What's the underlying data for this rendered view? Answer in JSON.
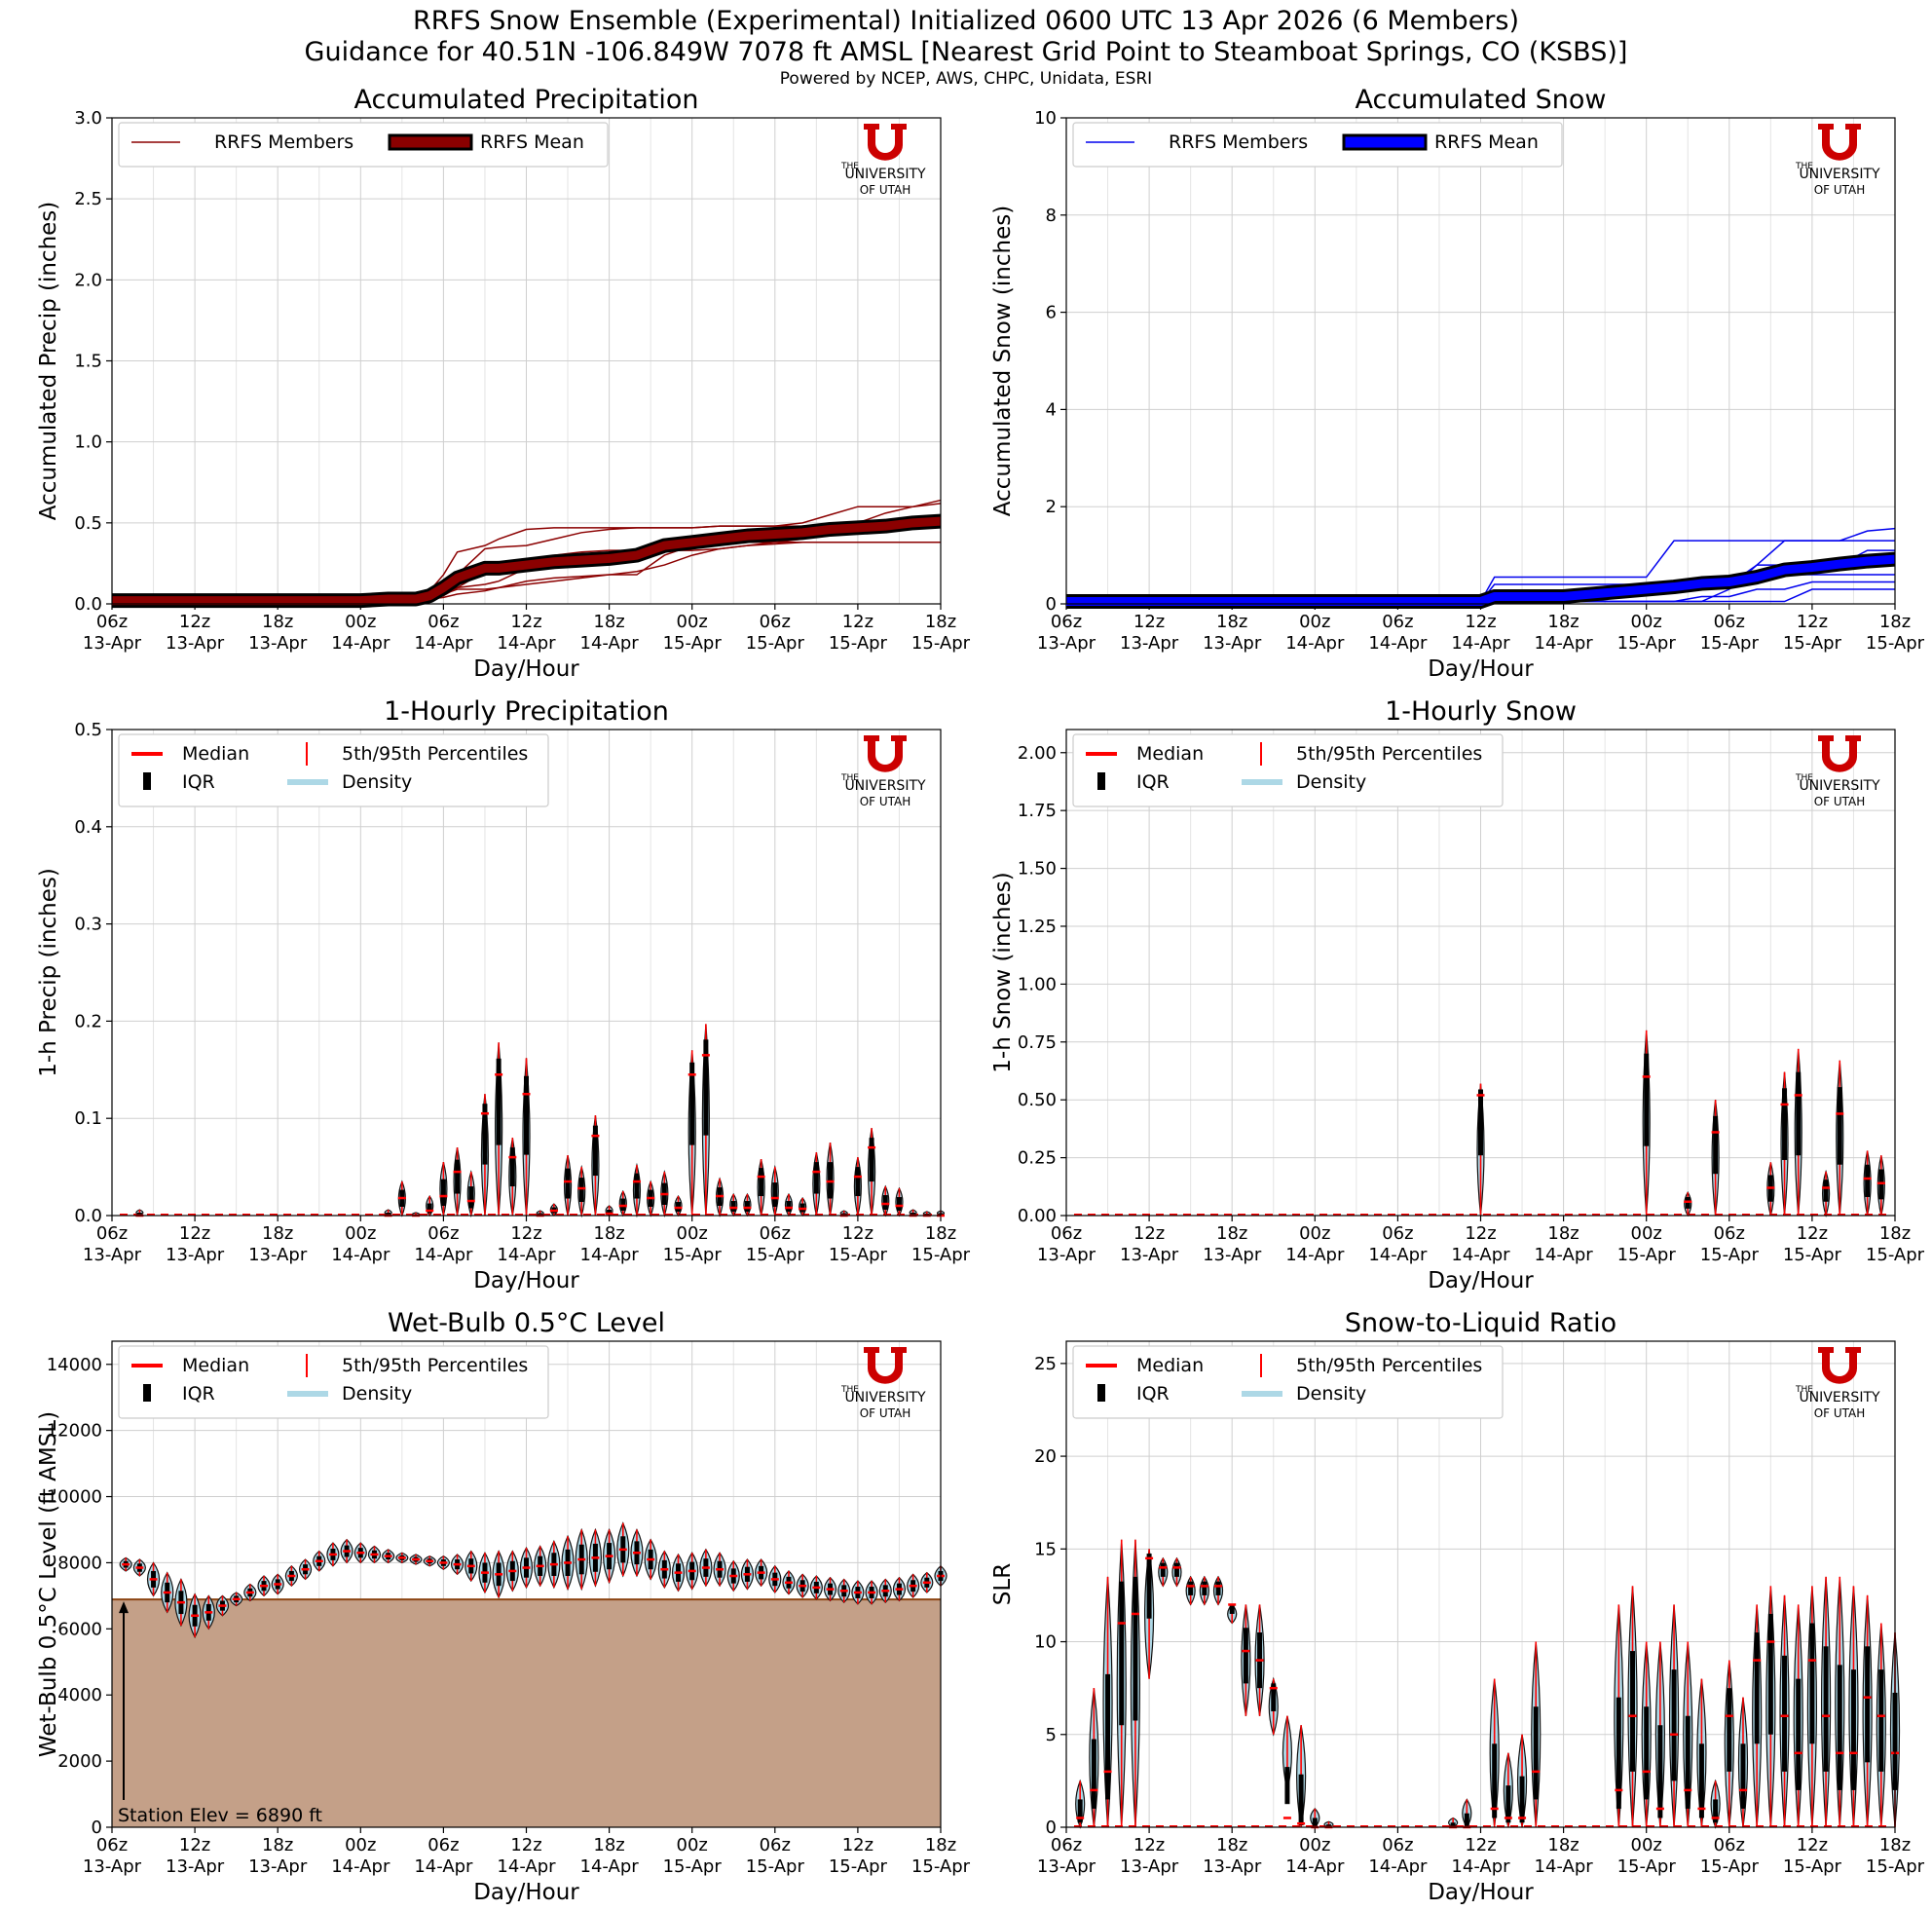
{
  "header": {
    "title_line1": "RRFS Snow Ensemble (Experimental) Initialized 0600 UTC 13 Apr 2026 (6 Members)",
    "title_line2": "Guidance for 40.51N -106.849W 7078 ft AMSL [Nearest Grid Point to Steamboat Springs, CO (KSBS)]",
    "credits": "Powered by NCEP, AWS, CHPC, Unidata, ESRI"
  },
  "logo": {
    "the": "THE",
    "university": "UNIVERSITY",
    "of_utah": "OF UTAH",
    "u_color": "#cc0000"
  },
  "x_axis": {
    "label": "Day/Hour",
    "ticks": [
      {
        "hour": "06z",
        "day": "13-Apr"
      },
      {
        "hour": "12z",
        "day": "13-Apr"
      },
      {
        "hour": "18z",
        "day": "13-Apr"
      },
      {
        "hour": "00z",
        "day": "14-Apr"
      },
      {
        "hour": "06z",
        "day": "14-Apr"
      },
      {
        "hour": "12z",
        "day": "14-Apr"
      },
      {
        "hour": "18z",
        "day": "14-Apr"
      },
      {
        "hour": "00z",
        "day": "15-Apr"
      },
      {
        "hour": "06z",
        "day": "15-Apr"
      },
      {
        "hour": "12z",
        "day": "15-Apr"
      },
      {
        "hour": "18z",
        "day": "15-Apr"
      }
    ],
    "forecast_hours_range": [
      0,
      60
    ]
  },
  "legends": {
    "line_precip": {
      "members": "RRFS Members",
      "mean": "RRFS Mean"
    },
    "line_snow": {
      "members": "RRFS Members",
      "mean": "RRFS Mean"
    },
    "violin": {
      "median": "Median",
      "iqr": "IQR",
      "percentiles": "5th/95th Percentiles",
      "density": "Density"
    }
  },
  "colors": {
    "precip_member": "#8b0000",
    "precip_mean": "#8b0000",
    "snow_member": "#0000ee",
    "snow_mean": "#0000ff",
    "violin_fill": "#add8e6",
    "violin_edge": "#1f4e79",
    "median": "#ff0000",
    "terrain": "#c4a088",
    "terrain_edge": "#8b4513"
  },
  "annotation": {
    "station_elev": "Station Elev = 6890 ft"
  },
  "chart_data": [
    {
      "type": "line",
      "title": "Accumulated Precipitation",
      "xlabel": "Day/Hour",
      "ylabel": "Accumulated Precip (inches)",
      "ylim": [
        0,
        3.0
      ],
      "yticks": [
        "0.0",
        "0.5",
        "1.0",
        "1.5",
        "2.0",
        "2.5",
        "3.0"
      ],
      "x": [
        0,
        6,
        12,
        18,
        20,
        22,
        23,
        24,
        25,
        27,
        28,
        30,
        32,
        34,
        36,
        38,
        40,
        42,
        44,
        46,
        48,
        50,
        52,
        54,
        56,
        58,
        60
      ],
      "series": [
        {
          "name": "RRFS Mean",
          "values": [
            0.02,
            0.02,
            0.02,
            0.02,
            0.03,
            0.03,
            0.05,
            0.1,
            0.16,
            0.22,
            0.22,
            0.24,
            0.26,
            0.27,
            0.28,
            0.3,
            0.36,
            0.38,
            0.4,
            0.42,
            0.43,
            0.44,
            0.46,
            0.47,
            0.48,
            0.5,
            0.51
          ]
        },
        {
          "name": "Member 1",
          "values": [
            0.02,
            0.02,
            0.02,
            0.02,
            0.03,
            0.03,
            0.08,
            0.18,
            0.32,
            0.36,
            0.4,
            0.46,
            0.47,
            0.47,
            0.47,
            0.47,
            0.47,
            0.47,
            0.48,
            0.48,
            0.48,
            0.48,
            0.48,
            0.48,
            0.48,
            0.48,
            0.48
          ]
        },
        {
          "name": "Member 2",
          "values": [
            0.02,
            0.02,
            0.02,
            0.02,
            0.03,
            0.03,
            0.04,
            0.1,
            0.18,
            0.34,
            0.35,
            0.36,
            0.4,
            0.44,
            0.46,
            0.47,
            0.47,
            0.47,
            0.48,
            0.48,
            0.48,
            0.5,
            0.55,
            0.6,
            0.6,
            0.6,
            0.62
          ]
        },
        {
          "name": "Member 3",
          "values": [
            0.02,
            0.02,
            0.02,
            0.02,
            0.03,
            0.03,
            0.04,
            0.08,
            0.1,
            0.12,
            0.14,
            0.22,
            0.3,
            0.32,
            0.33,
            0.33,
            0.33,
            0.33,
            0.34,
            0.36,
            0.38,
            0.4,
            0.44,
            0.5,
            0.56,
            0.6,
            0.64
          ]
        },
        {
          "name": "Member 4",
          "values": [
            0.02,
            0.02,
            0.02,
            0.02,
            0.03,
            0.03,
            0.04,
            0.06,
            0.09,
            0.09,
            0.1,
            0.14,
            0.16,
            0.17,
            0.18,
            0.18,
            0.3,
            0.36,
            0.38,
            0.4,
            0.43,
            0.45,
            0.46,
            0.48,
            0.5,
            0.52,
            0.54
          ]
        },
        {
          "name": "Member 5",
          "values": [
            0.02,
            0.02,
            0.02,
            0.02,
            0.02,
            0.03,
            0.03,
            0.05,
            0.1,
            0.2,
            0.22,
            0.25,
            0.26,
            0.27,
            0.28,
            0.28,
            0.34,
            0.36,
            0.37,
            0.38,
            0.38,
            0.38,
            0.38,
            0.38,
            0.38,
            0.38,
            0.38
          ]
        },
        {
          "name": "Member 6",
          "values": [
            0.02,
            0.02,
            0.02,
            0.02,
            0.02,
            0.03,
            0.03,
            0.04,
            0.06,
            0.08,
            0.1,
            0.12,
            0.14,
            0.16,
            0.18,
            0.2,
            0.24,
            0.3,
            0.34,
            0.36,
            0.37,
            0.38,
            0.38,
            0.38,
            0.38,
            0.38,
            0.38
          ]
        }
      ]
    },
    {
      "type": "line",
      "title": "Accumulated Snow",
      "xlabel": "Day/Hour",
      "ylabel": "Accumulated Snow (inches)",
      "ylim": [
        0,
        10
      ],
      "yticks": [
        "0",
        "2",
        "4",
        "6",
        "8",
        "10"
      ],
      "x": [
        0,
        12,
        24,
        30,
        31,
        36,
        42,
        44,
        46,
        48,
        50,
        52,
        54,
        56,
        58,
        60
      ],
      "series": [
        {
          "name": "RRFS Mean",
          "values": [
            0.05,
            0.05,
            0.05,
            0.05,
            0.15,
            0.15,
            0.3,
            0.35,
            0.42,
            0.45,
            0.55,
            0.7,
            0.75,
            0.82,
            0.88,
            0.92
          ]
        },
        {
          "name": "Member 1",
          "values": [
            0.05,
            0.05,
            0.05,
            0.05,
            0.55,
            0.55,
            0.55,
            1.3,
            1.3,
            1.3,
            1.3,
            1.3,
            1.3,
            1.3,
            1.3,
            1.3
          ]
        },
        {
          "name": "Member 2",
          "values": [
            0.05,
            0.05,
            0.05,
            0.05,
            0.05,
            0.05,
            0.05,
            0.05,
            0.05,
            0.3,
            0.8,
            1.3,
            1.3,
            1.3,
            1.5,
            1.55
          ]
        },
        {
          "name": "Member 3",
          "values": [
            0.05,
            0.05,
            0.05,
            0.05,
            0.4,
            0.4,
            0.4,
            0.4,
            0.4,
            0.4,
            0.8,
            0.8,
            0.8,
            0.8,
            1.1,
            1.1
          ]
        },
        {
          "name": "Member 4",
          "values": [
            0.05,
            0.05,
            0.05,
            0.05,
            0.05,
            0.05,
            0.25,
            0.25,
            0.5,
            0.5,
            0.6,
            0.6,
            0.6,
            0.6,
            0.6,
            0.6
          ]
        },
        {
          "name": "Member 5",
          "values": [
            0.05,
            0.05,
            0.05,
            0.05,
            0.05,
            0.05,
            0.05,
            0.05,
            0.15,
            0.15,
            0.3,
            0.3,
            0.45,
            0.45,
            0.45,
            0.45
          ]
        },
        {
          "name": "Member 6",
          "values": [
            0.05,
            0.05,
            0.05,
            0.05,
            0.05,
            0.05,
            0.05,
            0.05,
            0.05,
            0.05,
            0.05,
            0.05,
            0.3,
            0.3,
            0.3,
            0.3
          ]
        }
      ]
    },
    {
      "type": "violin",
      "title": "1-Hourly Precipitation",
      "xlabel": "Day/Hour",
      "ylabel": "1-h Precip (inches)",
      "ylim": [
        0,
        0.5
      ],
      "yticks": [
        "0.0",
        "0.1",
        "0.2",
        "0.3",
        "0.4",
        "0.5"
      ],
      "hours": [
        2,
        20,
        21,
        22,
        23,
        24,
        25,
        26,
        27,
        28,
        29,
        30,
        31,
        32,
        33,
        34,
        35,
        36,
        37,
        38,
        39,
        40,
        41,
        42,
        43,
        44,
        45,
        46,
        47,
        48,
        49,
        50,
        51,
        52,
        53,
        54,
        55,
        56,
        57,
        58,
        59,
        60
      ],
      "p95": [
        0.006,
        0.006,
        0.035,
        0.003,
        0.02,
        0.055,
        0.07,
        0.045,
        0.125,
        0.178,
        0.08,
        0.162,
        0.005,
        0.012,
        0.062,
        0.05,
        0.103,
        0.01,
        0.025,
        0.052,
        0.035,
        0.045,
        0.02,
        0.17,
        0.197,
        0.038,
        0.022,
        0.022,
        0.058,
        0.05,
        0.022,
        0.018,
        0.065,
        0.075,
        0.005,
        0.06,
        0.09,
        0.03,
        0.028,
        0.006,
        0.004,
        0.005
      ],
      "median": [
        0.0,
        0.0,
        0.018,
        0.0,
        0.005,
        0.02,
        0.045,
        0.015,
        0.105,
        0.145,
        0.06,
        0.125,
        0.0,
        0.005,
        0.035,
        0.028,
        0.082,
        0.002,
        0.01,
        0.035,
        0.018,
        0.022,
        0.008,
        0.145,
        0.165,
        0.02,
        0.008,
        0.008,
        0.04,
        0.018,
        0.008,
        0.007,
        0.045,
        0.035,
        0.0,
        0.04,
        0.07,
        0.012,
        0.01,
        0.0,
        0.0,
        0.0
      ]
    },
    {
      "type": "violin",
      "title": "1-Hourly Snow",
      "xlabel": "Day/Hour",
      "ylabel": "1-h Snow (inches)",
      "ylim": [
        0,
        2.1
      ],
      "yticks": [
        "0.00",
        "0.25",
        "0.50",
        "0.75",
        "1.00",
        "1.25",
        "1.50",
        "1.75",
        "2.00"
      ],
      "hours": [
        30,
        42,
        45,
        47,
        51,
        52,
        53,
        55,
        56,
        58,
        59
      ],
      "p95": [
        0.57,
        0.8,
        0.1,
        0.5,
        0.23,
        0.62,
        0.72,
        0.19,
        0.67,
        0.28,
        0.26
      ],
      "median": [
        0.52,
        0.6,
        0.06,
        0.36,
        0.12,
        0.48,
        0.52,
        0.12,
        0.44,
        0.16,
        0.14
      ]
    },
    {
      "type": "violin",
      "title": "Wet-Bulb 0.5°C Level",
      "xlabel": "Day/Hour",
      "ylabel": "Wet-Bulb 0.5°C Level (ft AMSL)",
      "ylim": [
        0,
        14700
      ],
      "yticks": [
        "0",
        "2000",
        "4000",
        "6000",
        "8000",
        "10000",
        "12000",
        "14000"
      ],
      "station_elev_ft": 6890,
      "hours": [
        1,
        2,
        3,
        4,
        5,
        6,
        7,
        8,
        9,
        10,
        11,
        12,
        13,
        14,
        15,
        16,
        17,
        18,
        19,
        20,
        21,
        22,
        23,
        24,
        25,
        26,
        27,
        28,
        29,
        30,
        31,
        32,
        33,
        34,
        35,
        36,
        37,
        38,
        39,
        40,
        41,
        42,
        43,
        44,
        45,
        46,
        47,
        48,
        49,
        50,
        51,
        52,
        53,
        54,
        55,
        56,
        57,
        58,
        59,
        60
      ],
      "median": [
        7950,
        7850,
        7500,
        7100,
        6800,
        6400,
        6500,
        6700,
        6900,
        7100,
        7300,
        7350,
        7600,
        7800,
        8050,
        8250,
        8350,
        8300,
        8250,
        8200,
        8150,
        8100,
        8050,
        8000,
        7950,
        7900,
        7700,
        7650,
        7750,
        7850,
        7900,
        7950,
        8000,
        8100,
        8150,
        8200,
        8400,
        8300,
        8100,
        7800,
        7700,
        7750,
        7850,
        7800,
        7600,
        7650,
        7700,
        7500,
        7400,
        7300,
        7250,
        7200,
        7150,
        7100,
        7100,
        7150,
        7200,
        7300,
        7400,
        7600
      ],
      "spread": [
        200,
        250,
        500,
        600,
        700,
        650,
        500,
        300,
        200,
        250,
        300,
        300,
        300,
        300,
        300,
        350,
        350,
        300,
        250,
        200,
        150,
        150,
        150,
        200,
        300,
        450,
        600,
        700,
        600,
        600,
        600,
        700,
        800,
        900,
        850,
        800,
        800,
        700,
        600,
        550,
        550,
        550,
        550,
        500,
        450,
        450,
        400,
        400,
        350,
        350,
        350,
        350,
        350,
        350,
        350,
        350,
        350,
        350,
        300,
        300
      ]
    },
    {
      "type": "violin",
      "title": "Snow-to-Liquid Ratio",
      "xlabel": "Day/Hour",
      "ylabel": "SLR",
      "ylim": [
        0,
        26.2
      ],
      "yticks": [
        "0",
        "5",
        "10",
        "15",
        "20",
        "25"
      ],
      "hours": [
        1,
        2,
        3,
        4,
        5,
        6,
        7,
        8,
        9,
        10,
        11,
        12,
        13,
        14,
        15,
        16,
        17,
        18,
        19,
        20,
        21,
        22,
        23,
        24,
        25,
        26,
        27,
        28,
        29,
        30,
        31,
        32,
        33,
        34,
        35,
        36,
        37,
        38,
        39,
        40,
        41,
        42,
        43,
        44,
        45,
        46,
        47,
        48,
        49,
        50,
        51,
        52,
        53,
        54,
        55,
        56,
        57,
        58,
        59,
        60
      ],
      "low": [
        0,
        0,
        0,
        0,
        0,
        8,
        13,
        13,
        12,
        12,
        12,
        11,
        6,
        6,
        5,
        2,
        0,
        0,
        0,
        0,
        0,
        0,
        0,
        0,
        0,
        0,
        0,
        0,
        0,
        0,
        0,
        0,
        0,
        0,
        0,
        0,
        0,
        0,
        0,
        0,
        0,
        0,
        0,
        0,
        0,
        0,
        0,
        0,
        0,
        0,
        0,
        0,
        0,
        0,
        0,
        0,
        0,
        0,
        0,
        0
      ],
      "high": [
        2.5,
        7.5,
        13.5,
        15.5,
        15.5,
        15,
        14.5,
        14.5,
        13.5,
        13.5,
        13.5,
        12,
        12,
        12,
        8,
        6,
        5.5,
        1,
        0.3,
        0,
        0,
        0,
        0,
        0,
        0,
        0,
        0,
        0.5,
        1.5,
        0,
        8,
        4,
        5,
        10,
        0,
        0,
        0,
        0,
        0,
        12,
        13,
        10,
        10,
        12,
        10,
        8,
        2.5,
        9,
        7,
        12,
        13,
        12.5,
        12,
        13,
        13.5,
        13.5,
        13,
        12.5,
        11,
        10.5
      ],
      "median": [
        0.5,
        2,
        3,
        11,
        11.5,
        14.5,
        14,
        14,
        13,
        13,
        13,
        12,
        9.5,
        9,
        7.5,
        0.5,
        0.2,
        0,
        0,
        0,
        0,
        0,
        0,
        0,
        0,
        0,
        0,
        0,
        0,
        0,
        1,
        0.5,
        0.5,
        3,
        0,
        0,
        0,
        0,
        0,
        2,
        6,
        3,
        1,
        5,
        2,
        1,
        0.5,
        6,
        2,
        9,
        10,
        6,
        4,
        9,
        6,
        4,
        4,
        7,
        6,
        4
      ]
    }
  ]
}
